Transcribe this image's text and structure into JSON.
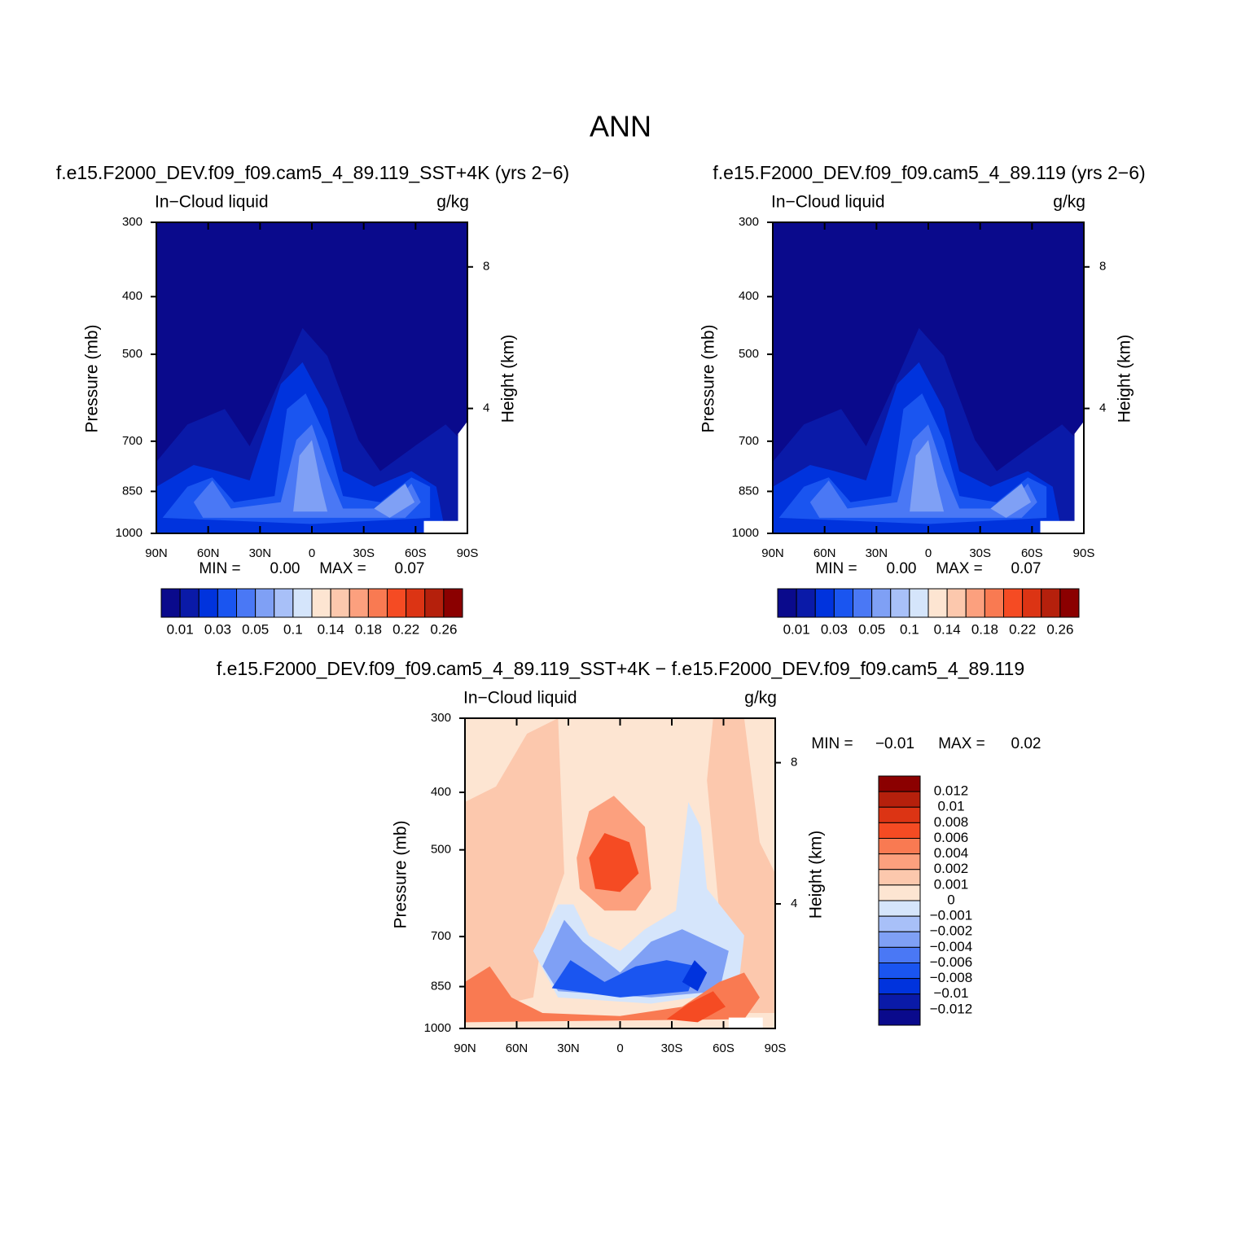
{
  "title": "ANN",
  "chart_data": [
    {
      "type": "contour",
      "title": "f.e15.F2000_DEV.f09_f09.cam5_4_89.119_SST+4K (yrs 2−6)",
      "left_label": "In−Cloud liquid",
      "right_label": "g/kg",
      "ylabel": "Pressure (mb)",
      "y2label": "Height (km)",
      "ylim": [
        1000,
        300
      ],
      "log_y": true,
      "yticks": [
        300,
        400,
        500,
        700,
        850,
        1000
      ],
      "y2lim": [
        0.47,
        9.26
      ],
      "y2ticks": [
        8,
        4
      ],
      "xlim": [
        90,
        -90
      ],
      "xticks": [
        {
          "value": 90,
          "label": "90N"
        },
        {
          "value": 60,
          "label": "60N"
        },
        {
          "value": 30,
          "label": "30N"
        },
        0,
        {
          "value": -30,
          "label": "30S"
        },
        {
          "value": -60,
          "label": "60S"
        },
        {
          "value": -90,
          "label": "90S"
        }
      ],
      "min_label": "MIN =",
      "min": {
        "value": 0,
        "label": "0.00"
      },
      "max_label": "MAX =",
      "max": {
        "value": 0.07,
        "label": "0.07"
      },
      "colorbar": {
        "orientation": "horizontal",
        "colors": [
          "#0a0a8c",
          "#0a1aa8",
          "#0033dd",
          "#1a55f0",
          "#4a78f5",
          "#7fa0f5",
          "#a8c0f8",
          "#d5e5fb",
          "#fde5d2",
          "#fcc8ad",
          "#fca07e",
          "#f97a52",
          "#f54b23",
          "#dc3414",
          "#b5200c",
          "#8b0000"
        ],
        "labels": [
          0.01,
          0.03,
          0.05,
          0.1,
          0.14,
          0.18,
          0.22,
          0.26
        ]
      }
    },
    {
      "type": "contour",
      "title": "f.e15.F2000_DEV.f09_f09.cam5_4_89.119 (yrs 2−6)",
      "left_label": "In−Cloud liquid",
      "right_label": "g/kg",
      "ylabel": "Pressure (mb)",
      "y2label": "Height (km)",
      "ylim": [
        1000,
        300
      ],
      "log_y": true,
      "yticks": [
        300,
        400,
        500,
        700,
        850,
        1000
      ],
      "y2lim": [
        0.47,
        9.26
      ],
      "y2ticks": [
        8,
        4
      ],
      "xlim": [
        90,
        -90
      ],
      "xticks": [
        {
          "value": 90,
          "label": "90N"
        },
        {
          "value": 60,
          "label": "60N"
        },
        {
          "value": 30,
          "label": "30N"
        },
        0,
        {
          "value": -30,
          "label": "30S"
        },
        {
          "value": -60,
          "label": "60S"
        },
        {
          "value": -90,
          "label": "90S"
        }
      ],
      "min_label": "MIN =",
      "min": {
        "value": 0,
        "label": "0.00"
      },
      "max_label": "MAX =",
      "max": {
        "value": 0.07,
        "label": "0.07"
      },
      "colorbar": {
        "orientation": "horizontal",
        "colors": [
          "#0a0a8c",
          "#0a1aa8",
          "#0033dd",
          "#1a55f0",
          "#4a78f5",
          "#7fa0f5",
          "#a8c0f8",
          "#d5e5fb",
          "#fde5d2",
          "#fcc8ad",
          "#fca07e",
          "#f97a52",
          "#f54b23",
          "#dc3414",
          "#b5200c",
          "#8b0000"
        ],
        "labels": [
          0.01,
          0.03,
          0.05,
          0.1,
          0.14,
          0.18,
          0.22,
          0.26
        ]
      }
    },
    {
      "type": "contour-diff",
      "title": "f.e15.F2000_DEV.f09_f09.cam5_4_89.119_SST+4K − f.e15.F2000_DEV.f09_f09.cam5_4_89.119",
      "left_label": "In−Cloud liquid",
      "right_label": "g/kg",
      "ylabel": "Pressure (mb)",
      "y2label": "Height (km)",
      "ylim": [
        1000,
        300
      ],
      "log_y": true,
      "yticks": [
        300,
        400,
        500,
        700,
        850,
        1000
      ],
      "y2lim": [
        0.47,
        9.26
      ],
      "y2ticks": [
        8,
        4
      ],
      "xlim": [
        90,
        -90
      ],
      "xticks": [
        {
          "value": 90,
          "label": "90N"
        },
        {
          "value": 60,
          "label": "60N"
        },
        {
          "value": 30,
          "label": "30N"
        },
        0,
        {
          "value": -30,
          "label": "30S"
        },
        {
          "value": -60,
          "label": "60S"
        },
        {
          "value": -90,
          "label": "90S"
        }
      ],
      "min_label": "MIN =",
      "min": {
        "value": -0.01,
        "label": "−0.01"
      },
      "max_label": "MAX =",
      "max": {
        "value": 0.02,
        "label": "0.02"
      },
      "colorbar": {
        "orientation": "vertical",
        "colors": [
          "#8b0000",
          "#b5200c",
          "#dc3414",
          "#f54b23",
          "#f97a52",
          "#fca07e",
          "#fcc8ad",
          "#fde5d2",
          "#d5e5fb",
          "#a8c0f8",
          "#7fa0f5",
          "#4a78f5",
          "#1a55f0",
          "#0033dd",
          "#0a1aa8",
          "#0a0a8c"
        ],
        "labels": [
          0.012,
          0.01,
          0.008,
          0.006,
          0.004,
          0.002,
          0.001,
          0,
          {
            "value": -0.001,
            "label": "−0.001"
          },
          {
            "value": -0.002,
            "label": "−0.002"
          },
          {
            "value": -0.004,
            "label": "−0.004"
          },
          {
            "value": -0.006,
            "label": "−0.006"
          },
          {
            "value": -0.008,
            "label": "−0.008"
          },
          {
            "value": -0.01,
            "label": "−0.01"
          },
          {
            "value": -0.012,
            "label": "−0.012"
          }
        ]
      }
    }
  ]
}
